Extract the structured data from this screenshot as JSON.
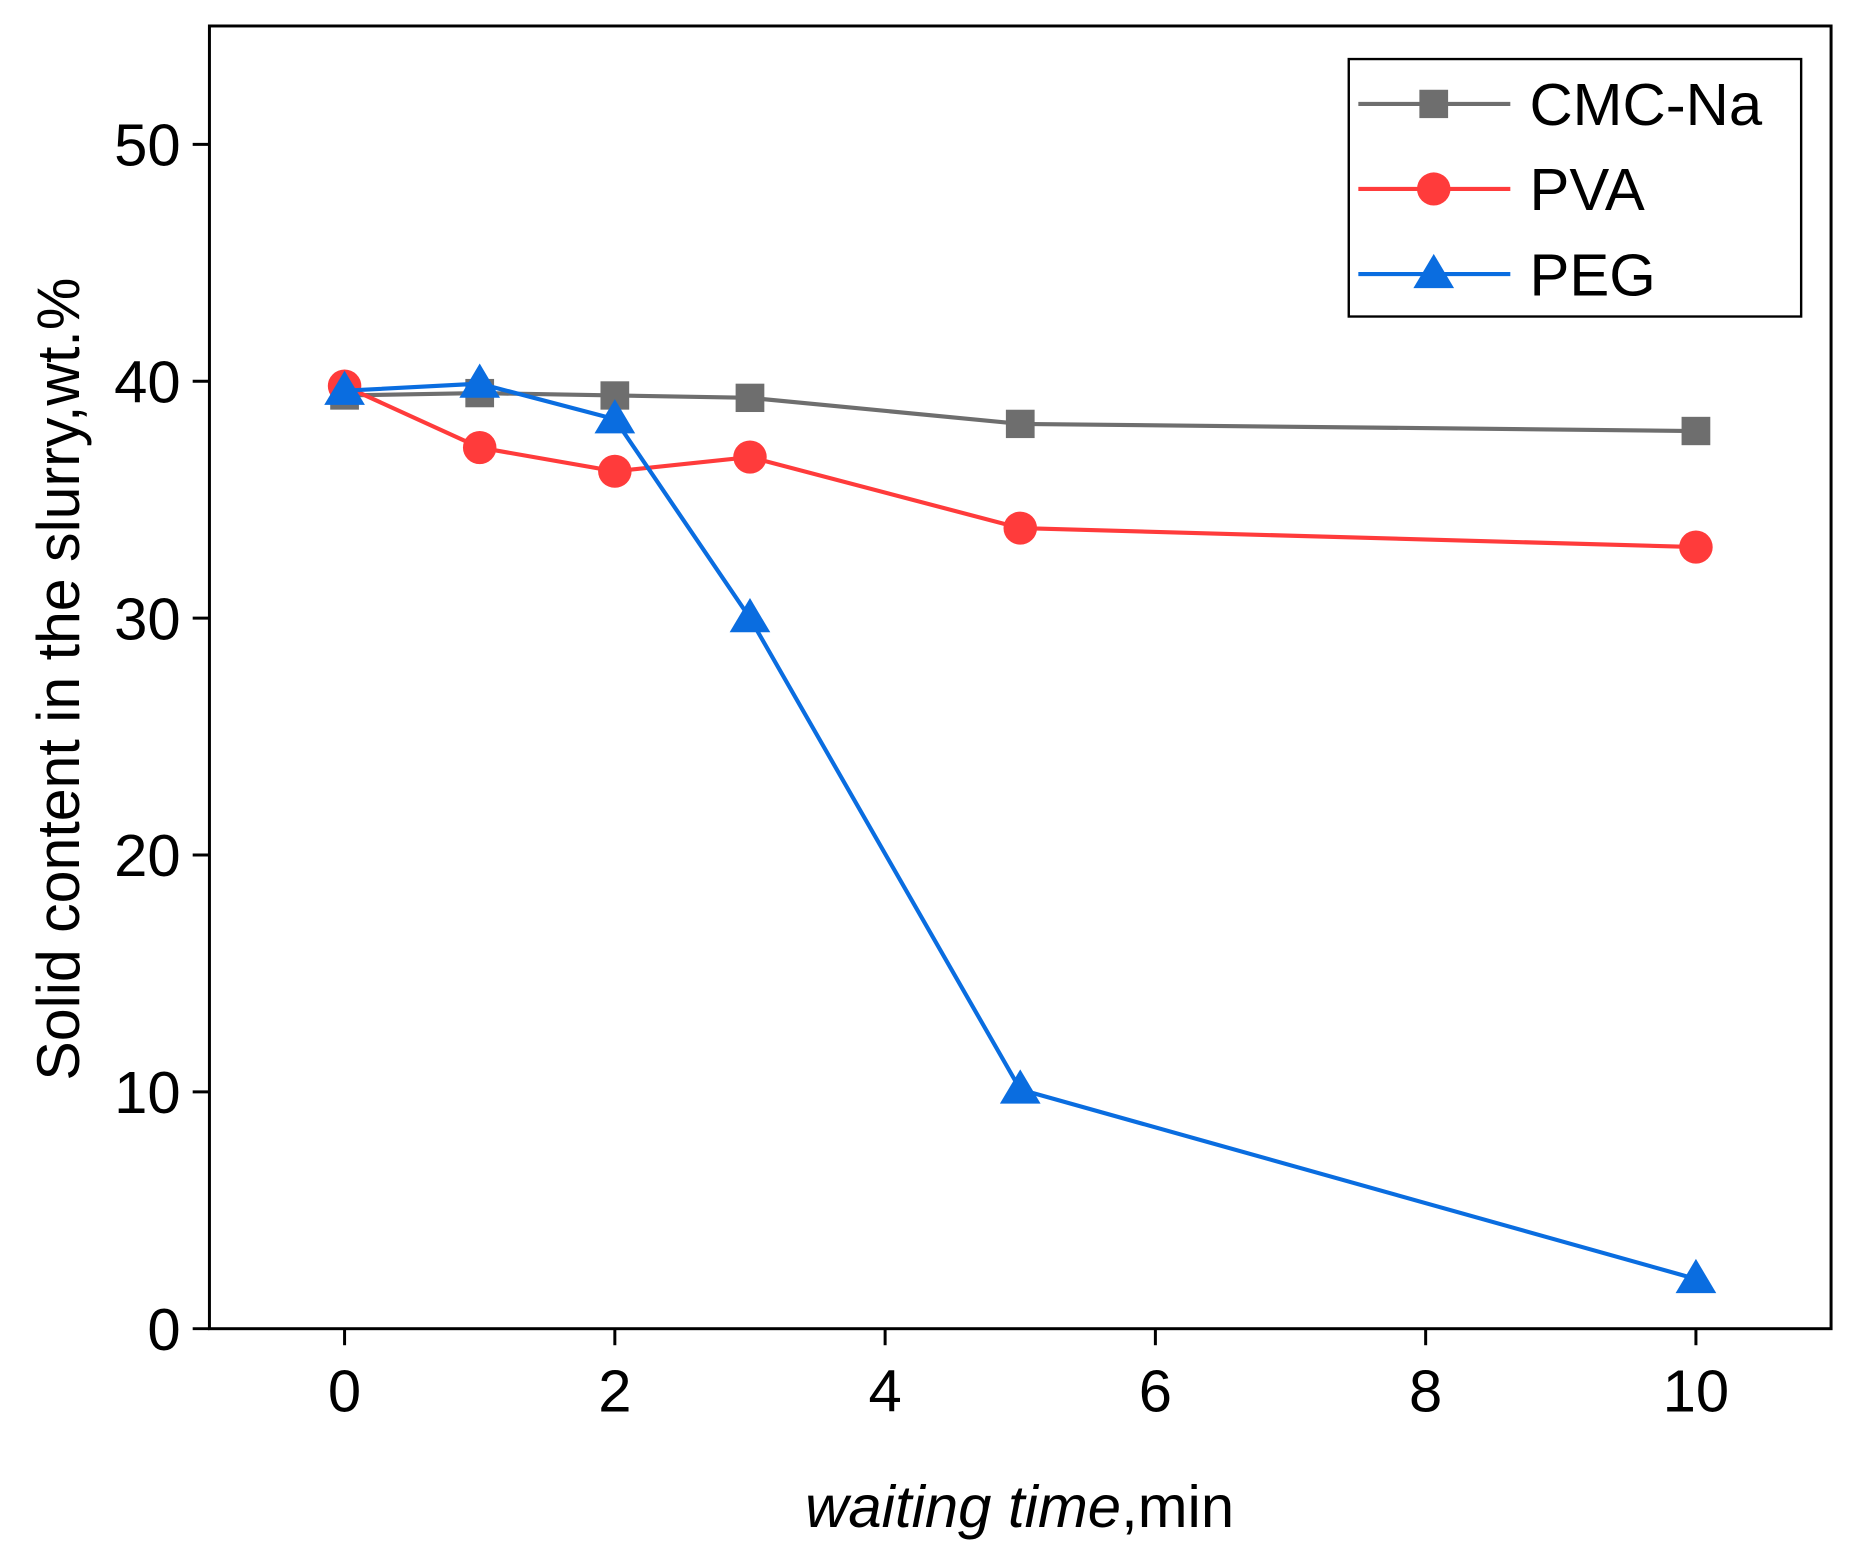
{
  "chart_data": {
    "type": "line",
    "title": "",
    "xlabel_italic": "waiting time",
    "xlabel_rest": ",min",
    "ylabel": "Solid content in the slurry,wt.%",
    "xlim": [
      -1,
      11
    ],
    "ylim": [
      0,
      55
    ],
    "xticks": [
      0,
      2,
      4,
      6,
      8,
      10
    ],
    "yticks": [
      0,
      10,
      20,
      30,
      40,
      50
    ],
    "grid": false,
    "legend_position": "top-right",
    "x": [
      0,
      1,
      2,
      3,
      5,
      10
    ],
    "series": [
      {
        "name": "CMC-Na",
        "color": "#6e6e6e",
        "marker": "square",
        "values": [
          39.4,
          39.5,
          39.4,
          39.3,
          38.2,
          37.9
        ]
      },
      {
        "name": "PVA",
        "color": "#ff3b3b",
        "marker": "circle",
        "values": [
          39.8,
          37.2,
          36.2,
          36.8,
          33.8,
          33.0
        ]
      },
      {
        "name": "PEG",
        "color": "#0a6de0",
        "marker": "triangle",
        "values": [
          39.6,
          39.9,
          38.4,
          30.0,
          10.1,
          2.1
        ]
      }
    ]
  }
}
